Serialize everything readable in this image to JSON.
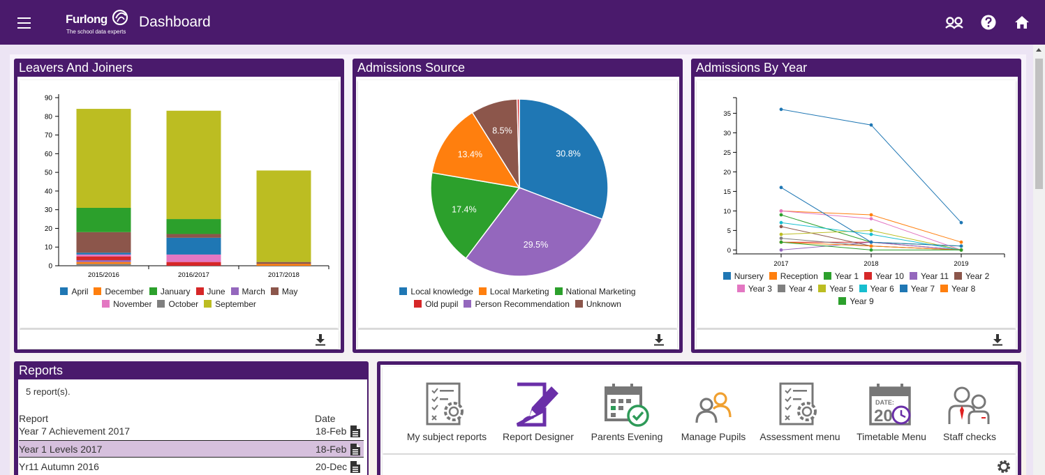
{
  "header": {
    "logo_name": "Furlong",
    "logo_tagline": "The school data experts",
    "title": "Dashboard"
  },
  "panels": {
    "leavers_joiners": {
      "title": "Leavers And Joiners"
    },
    "admissions_source": {
      "title": "Admissions Source"
    },
    "admissions_year": {
      "title": "Admissions By Year"
    },
    "reports": {
      "title": "Reports"
    }
  },
  "chart_data": [
    {
      "type": "bar",
      "stacked": true,
      "categories": [
        "2015/2016",
        "2016/2017",
        "2017/2018"
      ],
      "ylim": [
        0,
        90
      ],
      "yticks": [
        0,
        10,
        20,
        30,
        40,
        50,
        60,
        70,
        80,
        90
      ],
      "legend_position": "bottom",
      "series": [
        {
          "name": "October",
          "color": "#7f7f7f",
          "values": [
            1,
            0,
            0
          ]
        },
        {
          "name": "December",
          "color": "#ff7f0e",
          "values": [
            1,
            0,
            1
          ]
        },
        {
          "name": "March",
          "color": "#9467bd",
          "values": [
            1,
            0,
            0
          ]
        },
        {
          "name": "June",
          "color": "#d62728",
          "values": [
            2,
            2,
            0
          ]
        },
        {
          "name": "November",
          "color": "#e377c2",
          "values": [
            1,
            4,
            0
          ]
        },
        {
          "name": "April",
          "color": "#1f77b4",
          "values": [
            1,
            9,
            0
          ]
        },
        {
          "name": "May",
          "color": "#8c564b",
          "values": [
            11,
            2,
            1
          ]
        },
        {
          "name": "January",
          "color": "#2ca02c",
          "values": [
            13,
            8,
            0
          ]
        },
        {
          "name": "September",
          "color": "#bcbd22",
          "values": [
            53,
            58,
            49
          ]
        }
      ],
      "legend_rows": [
        [
          "April",
          "December",
          "January",
          "June",
          "March",
          "May"
        ],
        [
          "November",
          "October",
          "September"
        ]
      ]
    },
    {
      "type": "pie",
      "legend_position": "bottom",
      "slices": [
        {
          "label": "Local knowledge",
          "value": 30.8,
          "color": "#1f77b4",
          "display": "30.8%"
        },
        {
          "label": "Person Recommendation",
          "value": 29.5,
          "color": "#9467bd",
          "display": "29.5%"
        },
        {
          "label": "National Marketing",
          "value": 17.4,
          "color": "#2ca02c",
          "display": "17.4%"
        },
        {
          "label": "Local Marketing",
          "value": 13.4,
          "color": "#ff7f0e",
          "display": "13.4%"
        },
        {
          "label": "Unknown",
          "value": 8.5,
          "color": "#8c564b",
          "display": "8.5%"
        },
        {
          "label": "Old pupil",
          "value": 0.4,
          "color": "#d62728",
          "display": ""
        }
      ],
      "legend_rows": [
        [
          "Local knowledge",
          "Local Marketing",
          "National Marketing"
        ],
        [
          "Old pupil",
          "Person Recommendation",
          "Unknown"
        ]
      ]
    },
    {
      "type": "line",
      "x": [
        "2017",
        "2018",
        "2019"
      ],
      "ylim": [
        -1,
        39
      ],
      "yticks": [
        0,
        5,
        10,
        15,
        20,
        25,
        30,
        35
      ],
      "legend_position": "bottom",
      "series": [
        {
          "name": "Nursery",
          "color": "#1f77b4",
          "values": [
            36,
            32,
            7
          ]
        },
        {
          "name": "Reception",
          "color": "#ff7f0e",
          "values": [
            10,
            9,
            2
          ]
        },
        {
          "name": "Year 1",
          "color": "#2ca02c",
          "values": [
            9,
            2,
            1
          ]
        },
        {
          "name": "Year 10",
          "color": "#d62728",
          "values": [
            2,
            2,
            0
          ]
        },
        {
          "name": "Year 11",
          "color": "#9467bd",
          "values": [
            0,
            2,
            0
          ]
        },
        {
          "name": "Year 2",
          "color": "#8c564b",
          "values": [
            6,
            1,
            0
          ]
        },
        {
          "name": "Year 3",
          "color": "#e377c2",
          "values": [
            10,
            8,
            0
          ]
        },
        {
          "name": "Year 4",
          "color": "#7f7f7f",
          "values": [
            3,
            1,
            0
          ]
        },
        {
          "name": "Year 5",
          "color": "#bcbd22",
          "values": [
            4,
            5,
            0
          ]
        },
        {
          "name": "Year 6",
          "color": "#17becf",
          "values": [
            7,
            4,
            0
          ]
        },
        {
          "name": "Year 7",
          "color": "#1f77b4",
          "values": [
            16,
            2,
            1
          ]
        },
        {
          "name": "Year 8",
          "color": "#ff7f0e",
          "values": [
            2,
            1,
            0
          ]
        },
        {
          "name": "Year 9",
          "color": "#2ca02c",
          "values": [
            2,
            0,
            0
          ]
        }
      ],
      "legend_rows": [
        [
          "Nursery",
          "Reception",
          "Year 1",
          "Year 10",
          "Year 11",
          "Year 2"
        ],
        [
          "Year 3",
          "Year 4",
          "Year 5",
          "Year 6",
          "Year 7",
          "Year 8"
        ],
        [
          "Year 9"
        ]
      ]
    }
  ],
  "reports": {
    "count_text": "5 report(s).",
    "col_report": "Report",
    "col_date": "Date",
    "rows": [
      {
        "name": "Year 7 Achievement 2017",
        "date": "18-Feb"
      },
      {
        "name": "Year 1 Levels 2017",
        "date": "18-Feb"
      },
      {
        "name": "Yr11 Autumn 2016",
        "date": "20-Dec"
      }
    ]
  },
  "quick_links": [
    {
      "label": "My subject reports",
      "icon": "checklist-gear-icon"
    },
    {
      "label": "Report Designer",
      "icon": "document-pen-icon"
    },
    {
      "label": "Parents Evening",
      "icon": "calendar-check-icon"
    },
    {
      "label": "Manage Pupils",
      "icon": "people-icon"
    },
    {
      "label": "Assessment menu",
      "icon": "checklist-gear-icon"
    },
    {
      "label": "Timetable Menu",
      "icon": "date-clock-icon"
    },
    {
      "label": "Staff checks",
      "icon": "staff-icon"
    }
  ],
  "colors": {
    "brand": "#4a1a6c",
    "selected_row": "#d6c0dd",
    "accent_purple": "#6a2fa8"
  }
}
